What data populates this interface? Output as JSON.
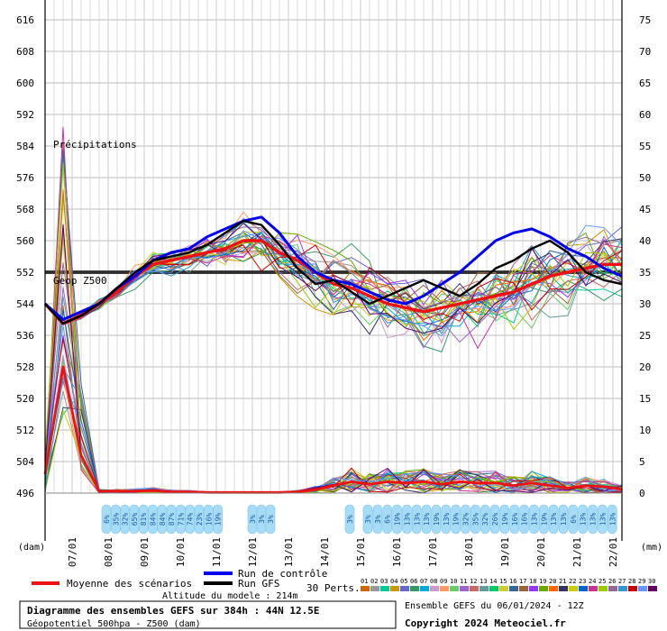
{
  "chart_data": {
    "type": "line",
    "title": "Diagramme des ensembles GEFS sur 384h : 44N 12.5E",
    "subtitle": "Géopotentiel 500hpa - Z500 (dam)",
    "altitude": "Altitude du modele : 214m",
    "ensemble_info": "Ensemble GEFS du 06/01/2024 - 12Z",
    "copyright": "Copyright 2024 Meteociel.fr",
    "y_left_unit": "(dam)",
    "y_right_unit": "(mm)",
    "y_left_ticks": [
      "616",
      "608",
      "600",
      "592",
      "584",
      "576",
      "568",
      "560",
      "552",
      "544",
      "536",
      "528",
      "520",
      "512",
      "504",
      "496"
    ],
    "y_right_ticks": [
      "75",
      "70",
      "65",
      "60",
      "55",
      "50",
      "45",
      "40",
      "35",
      "30",
      "25",
      "20",
      "15",
      "10",
      "5",
      "0"
    ],
    "ylim_left": [
      496,
      616
    ],
    "ylim_right": [
      0,
      75
    ],
    "x_ticks": [
      "07/01",
      "08/01",
      "09/01",
      "10/01",
      "11/01",
      "12/01",
      "13/01",
      "14/01",
      "15/01",
      "16/01",
      "17/01",
      "18/01",
      "19/01",
      "20/01",
      "21/01",
      "22/01"
    ],
    "precip_label": "Précipitations",
    "geop_label": "Geop Z500",
    "reference_line_dam": 552,
    "precip_probabilities": [
      "6%",
      "35%",
      "32%",
      "65%",
      "81%",
      "84%",
      "84%",
      "87%",
      "71%",
      "74%",
      "23%",
      "16%",
      "19%",
      "3%",
      "3%",
      "3%",
      "3%",
      "3%",
      "3%",
      "6%",
      "19%",
      "13%",
      "13%",
      "13%",
      "19%",
      "13%",
      "19%",
      "32%",
      "35%",
      "32%",
      "26%",
      "19%",
      "16%",
      "16%",
      "13%",
      "19%",
      "13%",
      "13%",
      "6%",
      "13%"
    ],
    "legend": {
      "mean": "Moyenne des scénarios",
      "control": "Run de contrôle",
      "gfs": "Run GFS",
      "perts": "30 Perts."
    },
    "pert_numbers": [
      "01",
      "02",
      "03",
      "04",
      "05",
      "06",
      "07",
      "08",
      "09",
      "10",
      "11",
      "12",
      "13",
      "14",
      "15",
      "16",
      "17",
      "18",
      "19",
      "20",
      "21",
      "22",
      "23",
      "24",
      "25",
      "26",
      "27",
      "28",
      "29",
      "30"
    ],
    "pert_colors": [
      "#cc6600",
      "#999999",
      "#00cc99",
      "#cc9900",
      "#6666cc",
      "#339966",
      "#00aadd",
      "#cc99cc",
      "#ff9966",
      "#66cc66",
      "#9966cc",
      "#cc6666",
      "#669999",
      "#00cc66",
      "#cccc33",
      "#336699",
      "#996633",
      "#9933ff",
      "#66aa00",
      "#ff6600",
      "#333366",
      "#cccc00",
      "#0066cc",
      "#cc3399",
      "#99cc00",
      "#996699",
      "#3399cc",
      "#cc0000",
      "#6699ff",
      "#660066"
    ],
    "series": [
      {
        "name": "Moyenne des scénarios",
        "color": "#ee1111",
        "x": [
          0,
          12,
          24,
          36,
          48,
          60,
          72,
          84,
          96,
          108,
          120,
          132,
          144,
          156,
          168,
          180,
          192,
          204,
          216,
          228,
          240,
          252,
          264,
          276,
          288,
          300,
          312,
          324,
          336,
          348,
          360,
          372,
          384
        ],
        "values": [
          544,
          539,
          541,
          544,
          547,
          551,
          554,
          555,
          556,
          557,
          558,
          560,
          560,
          557,
          555,
          552,
          549,
          548,
          546,
          544,
          543,
          542,
          543,
          544,
          545,
          546,
          547,
          549,
          551,
          552,
          553,
          554,
          554
        ]
      },
      {
        "name": "Run de contrôle",
        "color": "#0000ee",
        "x": [
          0,
          12,
          24,
          36,
          48,
          60,
          72,
          84,
          96,
          108,
          120,
          132,
          144,
          156,
          168,
          180,
          192,
          204,
          216,
          228,
          240,
          252,
          264,
          276,
          288,
          300,
          312,
          324,
          336,
          348,
          360,
          372,
          384
        ],
        "values": [
          544,
          540,
          542,
          544,
          548,
          551,
          555,
          557,
          558,
          561,
          563,
          565,
          566,
          562,
          556,
          552,
          550,
          549,
          547,
          545,
          544,
          546,
          549,
          552,
          556,
          560,
          562,
          563,
          561,
          558,
          556,
          553,
          551
        ]
      },
      {
        "name": "Run GFS",
        "color": "#000000",
        "x": [
          0,
          12,
          24,
          36,
          48,
          60,
          72,
          84,
          96,
          108,
          120,
          132,
          144,
          156,
          168,
          180,
          192,
          204,
          216,
          228,
          240,
          252,
          264,
          276,
          288,
          300,
          312,
          324,
          336,
          348,
          360,
          372,
          384
        ],
        "values": [
          544,
          539,
          541,
          544,
          548,
          552,
          555,
          556,
          557,
          559,
          562,
          565,
          564,
          559,
          553,
          549,
          550,
          547,
          544,
          546,
          548,
          550,
          548,
          546,
          549,
          553,
          555,
          558,
          560,
          557,
          552,
          550,
          549
        ]
      },
      {
        "name": "Precip moyenne",
        "color": "#ee1111",
        "x": [
          0,
          12,
          24,
          36,
          48,
          60,
          72,
          84,
          96,
          108,
          120,
          132,
          144,
          156,
          168,
          180,
          192,
          204,
          216,
          228,
          240,
          252,
          264,
          276,
          288,
          300,
          312,
          324,
          336,
          348,
          360,
          372,
          384
        ],
        "values_mm": [
          3,
          20,
          6,
          0.3,
          0.3,
          0.3,
          0.4,
          0.2,
          0.2,
          0.1,
          0.1,
          0.1,
          0.1,
          0.1,
          0.2,
          0.5,
          1.2,
          1.8,
          1.4,
          1.8,
          1.6,
          1.8,
          1.4,
          1.8,
          1.6,
          1.6,
          1.2,
          1.6,
          1.2,
          0.8,
          1.2,
          1.0,
          0.6
        ]
      }
    ]
  }
}
